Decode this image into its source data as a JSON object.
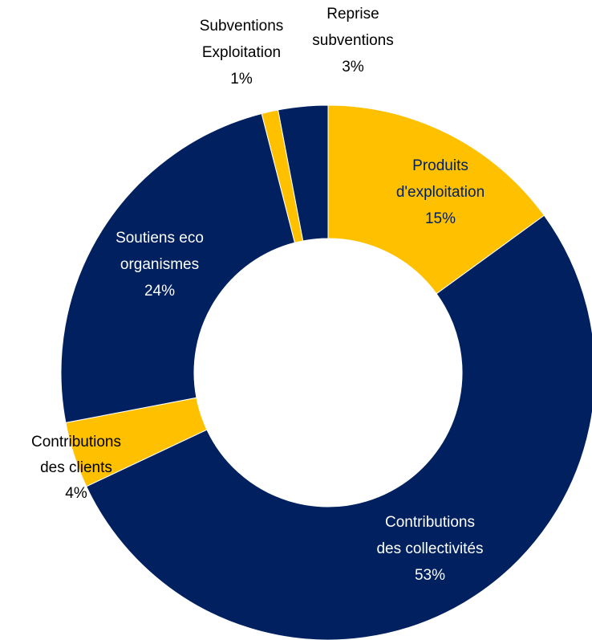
{
  "chart_data": {
    "type": "donut",
    "categories": [
      "Produits\nd'exploitation",
      "Contributions\ndes collectivités",
      "Contributions\ndes clients",
      "Soutiens eco\norganismes",
      "Subventions\nExploitation",
      "Reprise\nsubventions"
    ],
    "values": [
      15,
      53,
      4,
      24,
      1,
      3
    ],
    "value_labels": [
      "15%",
      "53%",
      "4%",
      "24%",
      "1%",
      "3%"
    ],
    "colors": [
      "#FFC000",
      "#002060",
      "#FFC000",
      "#002060",
      "#FFC000",
      "#002060"
    ]
  }
}
